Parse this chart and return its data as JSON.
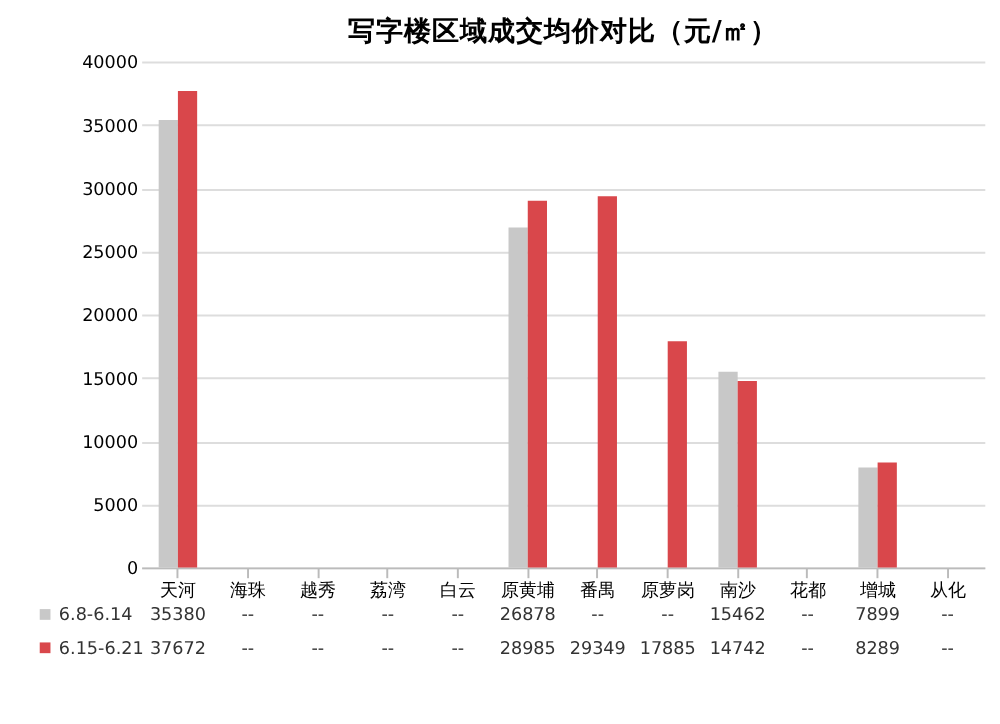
{
  "chart_data": {
    "type": "bar",
    "title": "写字楼区域成交均价对比（元/㎡）",
    "categories": [
      "天河",
      "海珠",
      "越秀",
      "荔湾",
      "白云",
      "原黄埔",
      "番禺",
      "原萝岗",
      "南沙",
      "花都",
      "增城",
      "从化"
    ],
    "series": [
      {
        "name": "6.8-6.14",
        "color": "#c8c8c8",
        "values": [
          35380,
          null,
          null,
          null,
          null,
          26878,
          null,
          null,
          15462,
          null,
          7899,
          null
        ],
        "value_labels": [
          "35380",
          "--",
          "--",
          "--",
          "--",
          "26878",
          "--",
          "--",
          "15462",
          "--",
          "7899",
          "--"
        ]
      },
      {
        "name": "6.15-6.21",
        "color": "#d9474b",
        "values": [
          37672,
          null,
          null,
          null,
          null,
          28985,
          29349,
          17885,
          14742,
          null,
          8289,
          null
        ],
        "value_labels": [
          "37672",
          "--",
          "--",
          "--",
          "--",
          "28985",
          "29349",
          "17885",
          "14742",
          "--",
          "8289",
          "--"
        ]
      }
    ],
    "ylim": [
      0,
      40000
    ],
    "yticks": [
      0,
      5000,
      10000,
      15000,
      20000,
      25000,
      30000,
      35000,
      40000
    ],
    "grid": "y",
    "legend": "bottom"
  }
}
